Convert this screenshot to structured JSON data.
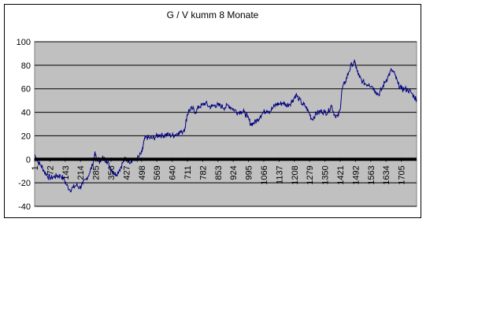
{
  "chart_data": {
    "type": "line",
    "title": "G / V kumm 8 Monate",
    "xlabel": "",
    "ylabel": "",
    "ylim": [
      -40,
      100
    ],
    "y_ticks": [
      "100",
      "80",
      "60",
      "40",
      "20",
      "0",
      "-20",
      "-40"
    ],
    "x_range": [
      1,
      1776
    ],
    "x_tick_labels": [
      "1",
      "72",
      "143",
      "214",
      "285",
      "356",
      "427",
      "498",
      "569",
      "640",
      "711",
      "782",
      "853",
      "924",
      "995",
      "1066",
      "1137",
      "1208",
      "1279",
      "1350",
      "1421",
      "1492",
      "1563",
      "1634",
      "1705"
    ],
    "grid": true,
    "legend": "none",
    "series": [
      {
        "points": [
          [
            1,
            4
          ],
          [
            15,
            -2
          ],
          [
            30,
            -5
          ],
          [
            45,
            -10
          ],
          [
            60,
            -14
          ],
          [
            75,
            -16
          ],
          [
            90,
            -15
          ],
          [
            105,
            -14
          ],
          [
            120,
            -14
          ],
          [
            135,
            -16
          ],
          [
            150,
            -22
          ],
          [
            165,
            -26
          ],
          [
            180,
            -24
          ],
          [
            195,
            -22
          ],
          [
            210,
            -24
          ],
          [
            225,
            -21
          ],
          [
            240,
            -17
          ],
          [
            255,
            -12
          ],
          [
            270,
            -5
          ],
          [
            280,
            5
          ],
          [
            290,
            0
          ],
          [
            305,
            -1
          ],
          [
            320,
            1
          ],
          [
            335,
            -1
          ],
          [
            350,
            -6
          ],
          [
            365,
            -11
          ],
          [
            380,
            -13
          ],
          [
            395,
            -9
          ],
          [
            410,
            -3
          ],
          [
            425,
            1
          ],
          [
            440,
            -2
          ],
          [
            455,
            0
          ],
          [
            470,
            -1
          ],
          [
            485,
            2
          ],
          [
            500,
            6
          ],
          [
            510,
            16
          ],
          [
            520,
            19
          ],
          [
            535,
            18
          ],
          [
            550,
            18
          ],
          [
            565,
            19
          ],
          [
            580,
            21
          ],
          [
            595,
            20
          ],
          [
            610,
            21
          ],
          [
            625,
            21
          ],
          [
            640,
            20
          ],
          [
            655,
            21
          ],
          [
            670,
            23
          ],
          [
            685,
            23
          ],
          [
            700,
            27
          ],
          [
            710,
            38
          ],
          [
            720,
            42
          ],
          [
            735,
            43
          ],
          [
            750,
            40
          ],
          [
            765,
            45
          ],
          [
            780,
            46
          ],
          [
            795,
            48
          ],
          [
            810,
            45
          ],
          [
            825,
            45
          ],
          [
            840,
            46
          ],
          [
            855,
            46
          ],
          [
            870,
            45
          ],
          [
            885,
            44
          ],
          [
            900,
            46
          ],
          [
            915,
            44
          ],
          [
            930,
            42
          ],
          [
            945,
            40
          ],
          [
            960,
            41
          ],
          [
            975,
            40
          ],
          [
            990,
            36
          ],
          [
            1005,
            30
          ],
          [
            1020,
            31
          ],
          [
            1035,
            33
          ],
          [
            1050,
            37
          ],
          [
            1065,
            40
          ],
          [
            1080,
            42
          ],
          [
            1095,
            41
          ],
          [
            1110,
            44
          ],
          [
            1125,
            47
          ],
          [
            1140,
            47
          ],
          [
            1155,
            48
          ],
          [
            1170,
            46
          ],
          [
            1185,
            47
          ],
          [
            1200,
            50
          ],
          [
            1215,
            55
          ],
          [
            1230,
            51
          ],
          [
            1245,
            47
          ],
          [
            1260,
            45
          ],
          [
            1275,
            40
          ],
          [
            1290,
            34
          ],
          [
            1305,
            38
          ],
          [
            1320,
            40
          ],
          [
            1335,
            41
          ],
          [
            1350,
            40
          ],
          [
            1365,
            40
          ],
          [
            1380,
            46
          ],
          [
            1395,
            38
          ],
          [
            1410,
            36
          ],
          [
            1420,
            42
          ],
          [
            1430,
            60
          ],
          [
            1445,
            66
          ],
          [
            1460,
            74
          ],
          [
            1475,
            81
          ],
          [
            1490,
            82
          ],
          [
            1500,
            75
          ],
          [
            1510,
            70
          ],
          [
            1525,
            66
          ],
          [
            1540,
            64
          ],
          [
            1555,
            64
          ],
          [
            1570,
            62
          ],
          [
            1585,
            58
          ],
          [
            1600,
            55
          ],
          [
            1615,
            60
          ],
          [
            1630,
            66
          ],
          [
            1645,
            71
          ],
          [
            1660,
            76
          ],
          [
            1675,
            72
          ],
          [
            1690,
            64
          ],
          [
            1705,
            60
          ],
          [
            1720,
            60
          ],
          [
            1735,
            59
          ],
          [
            1750,
            57
          ],
          [
            1765,
            53
          ],
          [
            1776,
            51
          ]
        ]
      }
    ],
    "colors": {
      "line": "#000080",
      "plot_bg": "#c0c0c0",
      "gridline": "#000000",
      "zero_line": "#000000"
    }
  }
}
